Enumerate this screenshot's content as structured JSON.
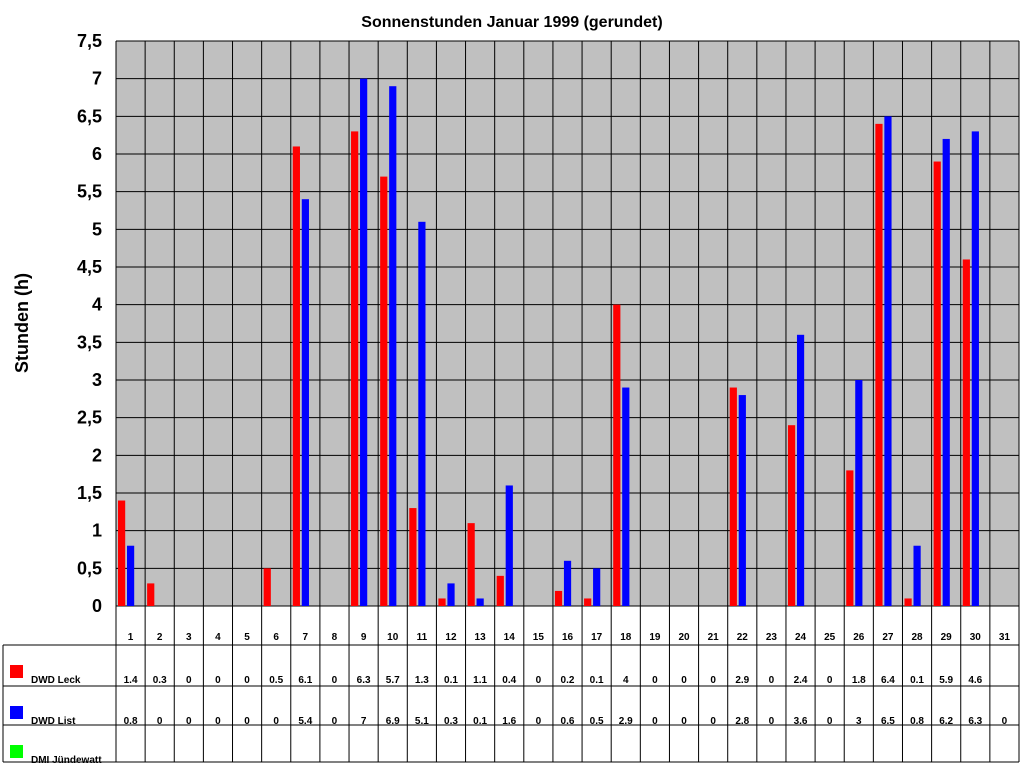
{
  "chart_data": {
    "type": "bar",
    "title": "Sonnenstunden Januar 1999 (gerundet)",
    "xlabel": "",
    "ylabel": "Stunden (h)",
    "ylim": [
      0,
      7.5
    ],
    "ytick_labels": [
      "0",
      "0,5",
      "1",
      "1,5",
      "2",
      "2,5",
      "3",
      "3,5",
      "4",
      "4,5",
      "5",
      "5,5",
      "6",
      "6,5",
      "7",
      "7,5"
    ],
    "grid": true,
    "legend": "data-table",
    "categories": [
      "1",
      "2",
      "3",
      "4",
      "5",
      "6",
      "7",
      "8",
      "9",
      "10",
      "11",
      "12",
      "13",
      "14",
      "15",
      "16",
      "17",
      "18",
      "19",
      "20",
      "21",
      "22",
      "23",
      "24",
      "25",
      "26",
      "27",
      "28",
      "29",
      "30",
      "31"
    ],
    "series": [
      {
        "name": "DWD Leck",
        "color": "#ff0000",
        "values": [
          1.4,
          0.3,
          0,
          0,
          0,
          0.5,
          6.1,
          0,
          6.3,
          5.7,
          1.3,
          0.1,
          1.1,
          0.4,
          0,
          0.2,
          0.1,
          4,
          0,
          0,
          0,
          2.9,
          0,
          2.4,
          0,
          1.8,
          6.4,
          0.1,
          5.9,
          4.6,
          null
        ]
      },
      {
        "name": "DWD List",
        "color": "#0000ff",
        "values": [
          0.8,
          0,
          0,
          0,
          0,
          0,
          5.4,
          0,
          7,
          6.9,
          5.1,
          0.3,
          0.1,
          1.6,
          0,
          0.6,
          0.5,
          2.9,
          0,
          0,
          0,
          2.8,
          0,
          3.6,
          0,
          3,
          6.5,
          0.8,
          6.2,
          6.3,
          0
        ]
      },
      {
        "name": "DMI Jündewatt",
        "color": "#00ff00",
        "values": [
          null,
          null,
          null,
          null,
          null,
          null,
          null,
          null,
          null,
          null,
          null,
          null,
          null,
          null,
          null,
          null,
          null,
          null,
          null,
          null,
          null,
          null,
          null,
          null,
          null,
          null,
          null,
          null,
          null,
          null,
          null
        ]
      }
    ]
  },
  "colors": {
    "plot_background": "#c0c0c0",
    "gridline": "#000000"
  }
}
